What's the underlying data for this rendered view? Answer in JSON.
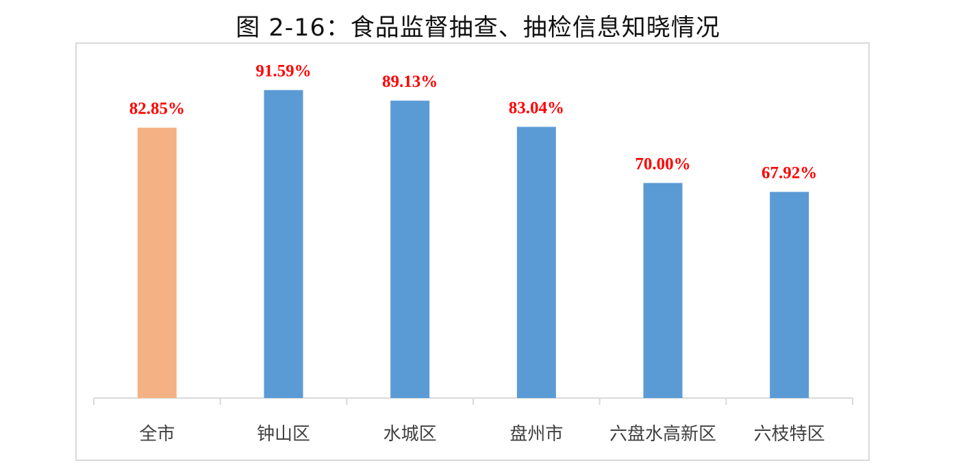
{
  "chart_data": {
    "type": "bar",
    "title": "图 2-16：食品监督抽查、抽检信息知晓情况",
    "categories": [
      "全市",
      "钟山区",
      "水城区",
      "盘州市",
      "六盘水高新区",
      "六枝特区"
    ],
    "values": [
      82.85,
      91.59,
      89.13,
      83.04,
      70.0,
      67.92
    ],
    "data_labels": [
      "82.85%",
      "91.59%",
      "89.13%",
      "83.04%",
      "70.00%",
      "67.92%"
    ],
    "colors": [
      "#f4b183",
      "#5b9bd5",
      "#5b9bd5",
      "#5b9bd5",
      "#5b9bd5",
      "#5b9bd5"
    ],
    "label_color": "#ff0000",
    "xlabel": "",
    "ylabel": "",
    "ylim": [
      20,
      100
    ],
    "grid": false,
    "legend": "none"
  }
}
